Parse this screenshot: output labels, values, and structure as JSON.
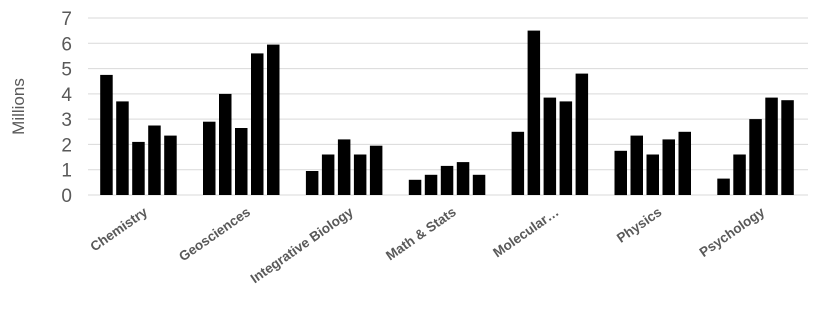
{
  "chart_data": {
    "type": "bar",
    "ylabel": "Millions",
    "ylim": [
      0,
      7
    ],
    "yticks": [
      0,
      1,
      2,
      3,
      4,
      5,
      6,
      7
    ],
    "grid": true,
    "legend": "none",
    "bar_color": "#000000",
    "categories": [
      "Chemistry",
      "Geosciences",
      "Integrative Biology",
      "Math & Stats",
      "Molecular…",
      "Physics",
      "Psychology"
    ],
    "values": [
      [
        4.75,
        3.7,
        2.1,
        2.75,
        2.35
      ],
      [
        2.9,
        4.0,
        2.65,
        5.6,
        5.95
      ],
      [
        0.95,
        1.6,
        2.2,
        1.6,
        1.95
      ],
      [
        0.6,
        0.8,
        1.15,
        1.3,
        0.8
      ],
      [
        2.5,
        6.5,
        3.85,
        3.7,
        4.8
      ],
      [
        1.75,
        2.35,
        1.6,
        2.2,
        2.5
      ],
      [
        0.65,
        1.6,
        3.0,
        3.85,
        3.75
      ]
    ]
  }
}
